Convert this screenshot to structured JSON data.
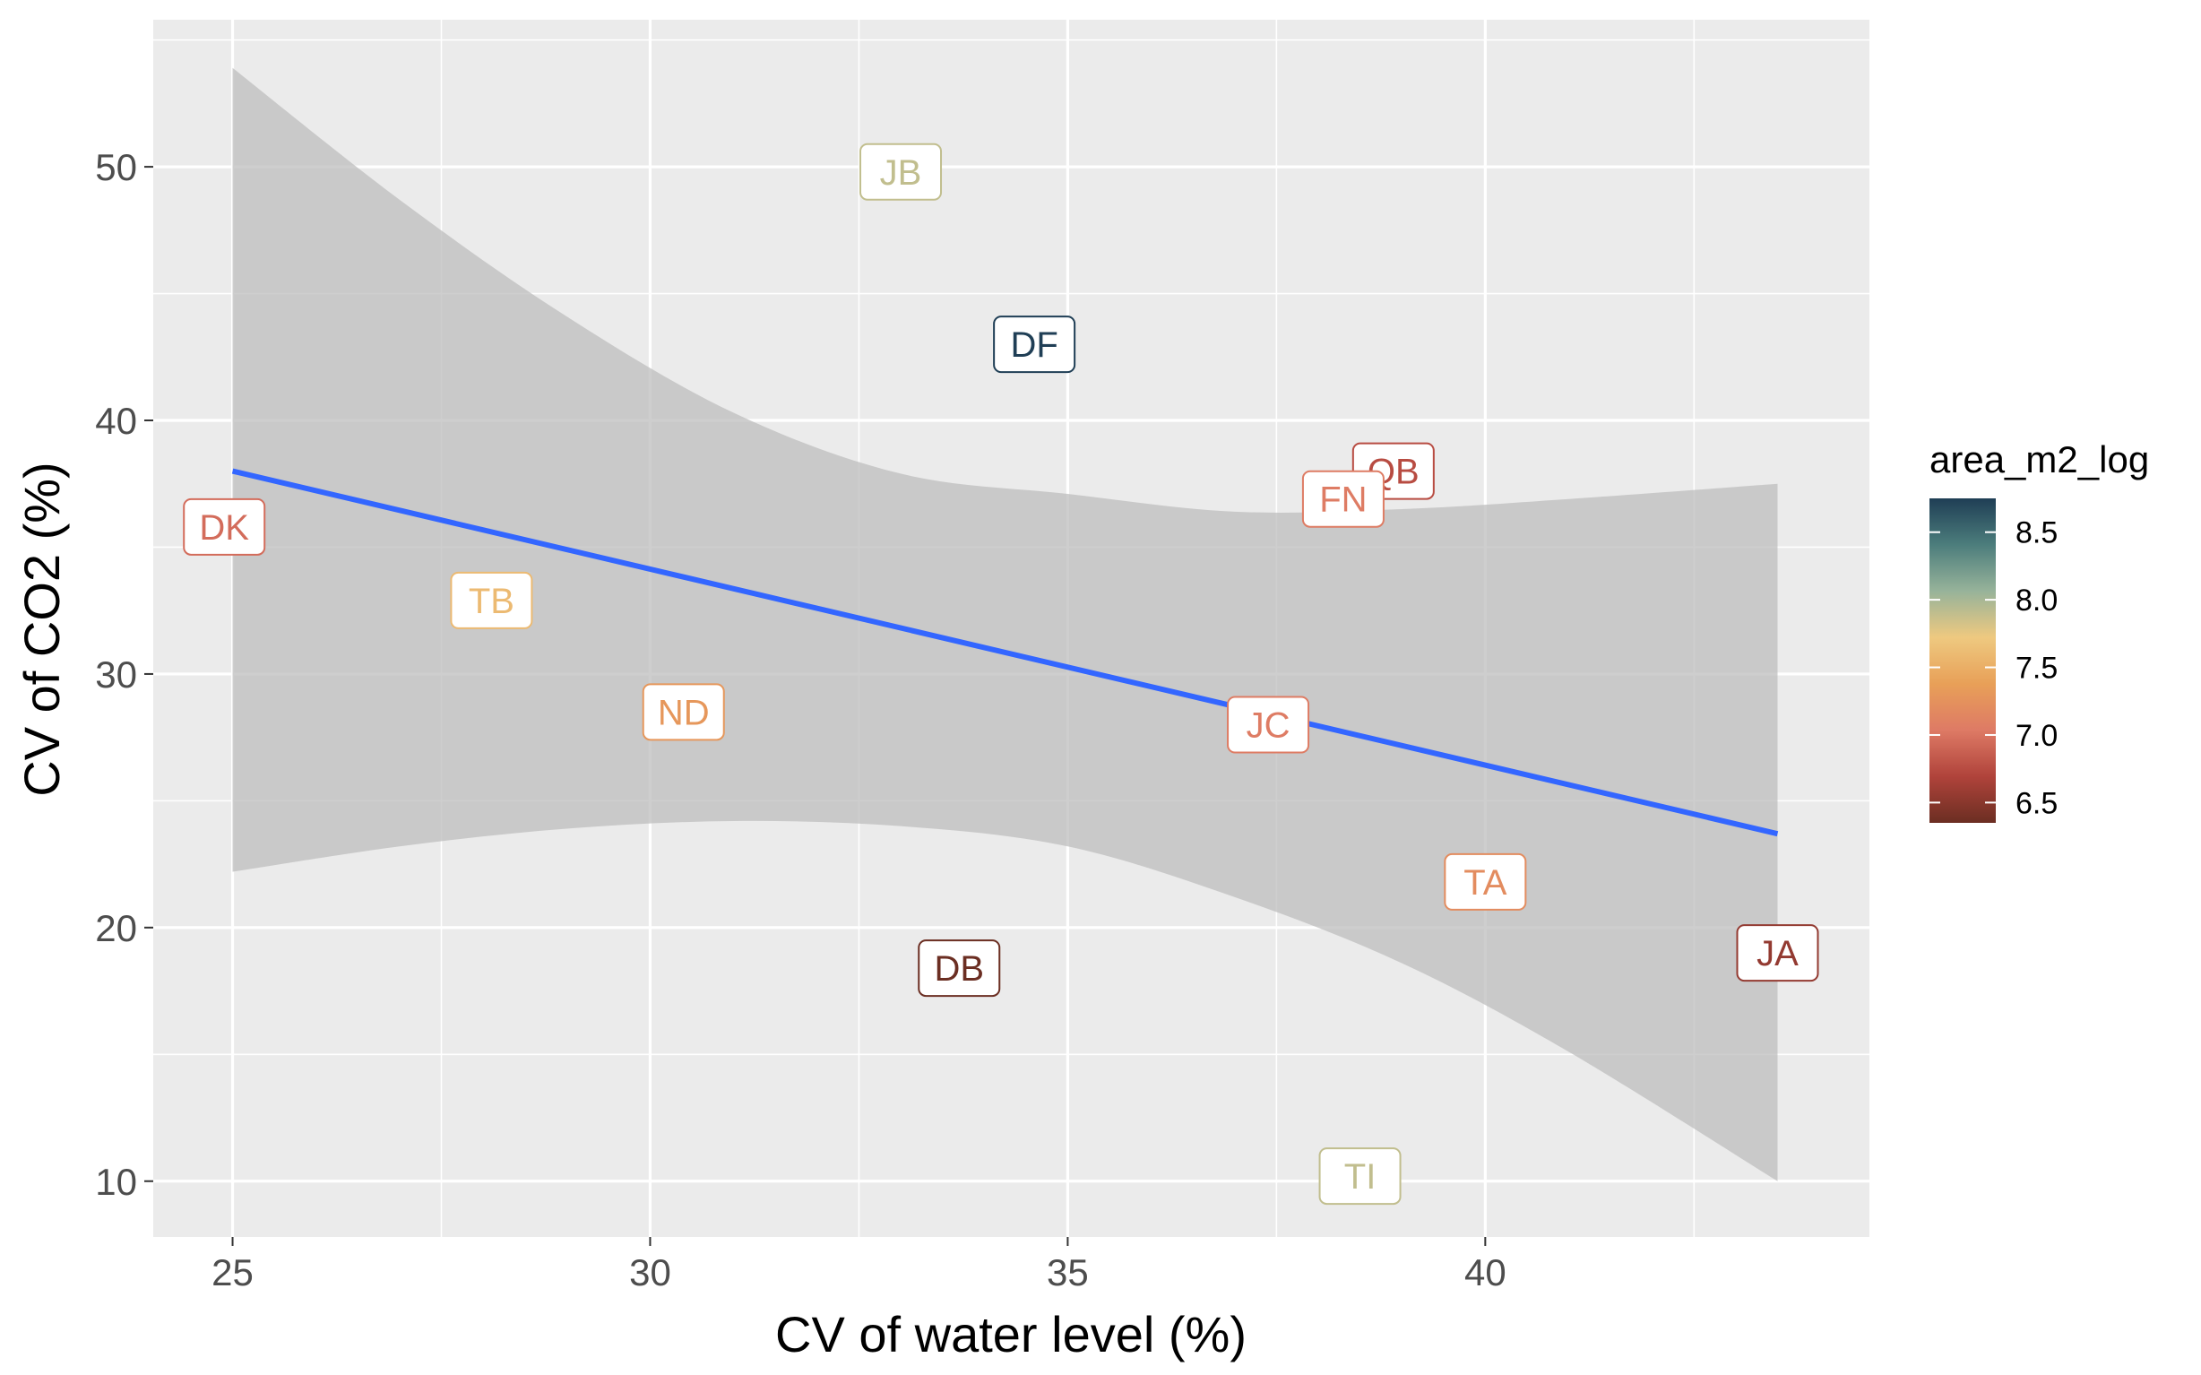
{
  "chart_data": {
    "type": "scatter",
    "xlabel": "CV of water level (%)",
    "ylabel": "CV of CO2 (%)",
    "xlim": [
      24.05,
      44.6
    ],
    "ylim": [
      7.8,
      55.8
    ],
    "xticks": [
      25,
      30,
      35,
      40
    ],
    "yticks": [
      10,
      20,
      30,
      40,
      50
    ],
    "grid": true,
    "points": [
      {
        "label": "JB",
        "x": 33.0,
        "y": 49.8,
        "area_m2_log": 7.9
      },
      {
        "label": "DF",
        "x": 34.6,
        "y": 43.0,
        "area_m2_log": 8.75
      },
      {
        "label": "QB",
        "x": 38.9,
        "y": 38.0,
        "area_m2_log": 6.75
      },
      {
        "label": "FN",
        "x": 38.3,
        "y": 36.9,
        "area_m2_log": 7.05
      },
      {
        "label": "DK",
        "x": 24.9,
        "y": 35.8,
        "area_m2_log": 6.95
      },
      {
        "label": "TB",
        "x": 28.1,
        "y": 32.9,
        "area_m2_log": 7.6
      },
      {
        "label": "ND",
        "x": 30.4,
        "y": 28.5,
        "area_m2_log": 7.3
      },
      {
        "label": "JC",
        "x": 37.4,
        "y": 28.0,
        "area_m2_log": 7.05
      },
      {
        "label": "TA",
        "x": 40.0,
        "y": 21.8,
        "area_m2_log": 7.2
      },
      {
        "label": "JA",
        "x": 43.5,
        "y": 19.0,
        "area_m2_log": 6.55
      },
      {
        "label": "DB",
        "x": 33.7,
        "y": 18.4,
        "area_m2_log": 6.35
      },
      {
        "label": "TI",
        "x": 38.5,
        "y": 10.2,
        "area_m2_log": 7.9
      }
    ],
    "regression": {
      "x": [
        25.0,
        43.5
      ],
      "y": [
        38.0,
        23.7
      ],
      "color": "#3366ff"
    },
    "confidence_band": {
      "x": [
        25.0,
        27.0,
        29.0,
        31.0,
        33.0,
        35.0,
        37.0,
        39.0,
        41.0,
        43.5
      ],
      "upper": [
        53.9,
        48.7,
        44.1,
        40.3,
        37.9,
        37.1,
        36.4,
        36.5,
        36.9,
        37.5
      ],
      "lower": [
        22.2,
        23.2,
        23.9,
        24.2,
        24.0,
        23.2,
        21.2,
        18.6,
        15.1,
        10.0
      ]
    },
    "legend": {
      "title": "area_m2_log",
      "position": "right",
      "ticks": [
        6.5,
        7.0,
        7.5,
        8.0,
        8.5
      ],
      "range": [
        6.35,
        8.75
      ],
      "gradient": [
        "#6b2e22",
        "#b0433b",
        "#de7a65",
        "#e8a058",
        "#eec980",
        "#97b39a",
        "#4c7d7c",
        "#1f3e55"
      ]
    },
    "colors": {
      "panel_bg": "#ebebeb",
      "grid_major": "#ffffff",
      "band_fill": "#bebebe"
    }
  }
}
